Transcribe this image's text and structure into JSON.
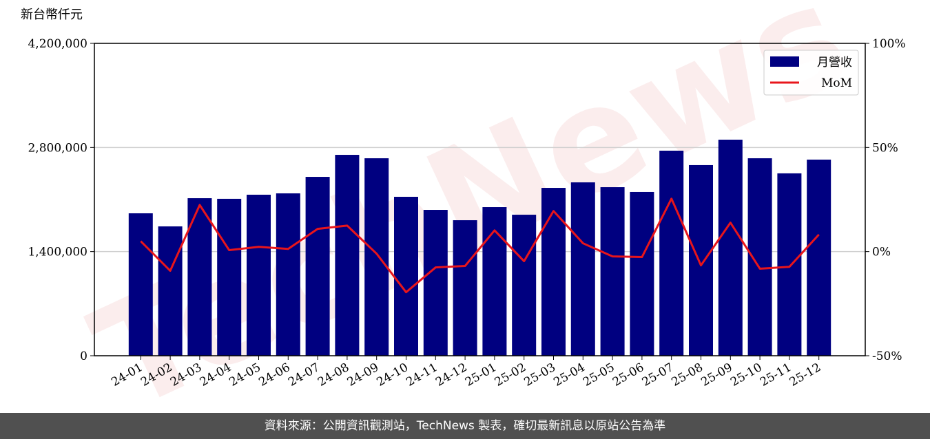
{
  "chart_data": {
    "type": "bar_line",
    "y_label": "新台幣仟元",
    "watermark": "TechNews",
    "footer": "資料來源：公開資訊觀測站，TechNews 製表，確切最新訊息以原站公告為準",
    "categories": [
      "24-01",
      "24-02",
      "24-03",
      "24-04",
      "24-05",
      "24-06",
      "24-07",
      "24-08",
      "24-09",
      "24-10",
      "24-11",
      "24-12",
      "25-01",
      "25-02",
      "25-03",
      "25-04",
      "25-05",
      "25-06",
      "25-07",
      "25-08",
      "25-09",
      "25-10",
      "25-11",
      "25-12"
    ],
    "series": [
      {
        "name": "月營收",
        "type": "bar",
        "color": "#000080",
        "values": [
          1915000,
          1739000,
          2118000,
          2110000,
          2165000,
          2183000,
          2405000,
          2701000,
          2655000,
          2137000,
          1961000,
          1822000,
          1998000,
          1896000,
          2257000,
          2331000,
          2266000,
          2202000,
          2757000,
          2563000,
          2905000,
          2655000,
          2452000,
          2637000
        ]
      },
      {
        "name": "MoM",
        "type": "line",
        "color": "#e8151b",
        "axis": "y2",
        "values": [
          5.0,
          -9.2,
          22.4,
          0.7,
          2.3,
          1.3,
          10.9,
          12.5,
          -1.0,
          -19.5,
          -7.6,
          -6.9,
          10.2,
          -4.6,
          19.5,
          4.0,
          -2.3,
          -2.6,
          25.4,
          -6.6,
          13.9,
          -8.2,
          -7.3,
          8.2
        ]
      }
    ],
    "ylim": [
      0,
      4200000
    ],
    "yticks": [
      0,
      {
        "value": 1400000,
        "label": "1,400,000"
      },
      {
        "value": 2800000,
        "label": "2,800,000"
      },
      {
        "value": 4200000,
        "label": "4,200,000"
      }
    ],
    "y2lim": [
      -50,
      100
    ],
    "y2ticks": [
      {
        "value": -50,
        "label": "-50%"
      },
      {
        "value": 0,
        "label": "0%"
      },
      {
        "value": 50,
        "label": "50%"
      },
      {
        "value": 100,
        "label": "100%"
      }
    ],
    "grid": true,
    "legend": "upper right"
  }
}
